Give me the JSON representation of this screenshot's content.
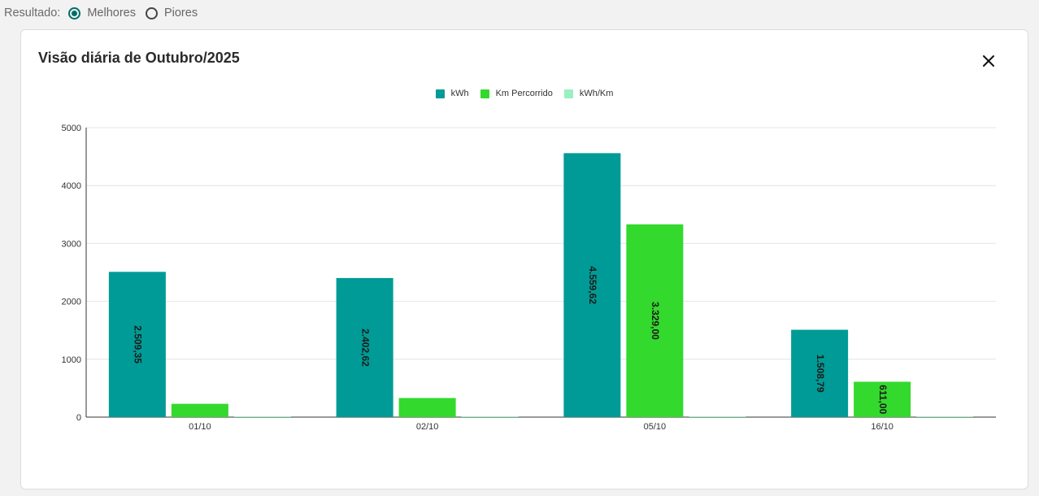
{
  "filter": {
    "label": "Resultado:",
    "options": [
      {
        "label": "Melhores",
        "checked": true
      },
      {
        "label": "Piores",
        "checked": false
      }
    ]
  },
  "card": {
    "title": "Visão diária de Outubro/2025"
  },
  "chart_data": {
    "type": "bar",
    "title": "Visão diária de Outubro/2025",
    "categories": [
      "01/10",
      "02/10",
      "05/10",
      "16/10"
    ],
    "series": [
      {
        "name": "kWh",
        "color": "#009b96",
        "values": [
          2509.35,
          2402.62,
          4559.62,
          1508.79
        ],
        "labels": [
          "2.509,35",
          "2.402,62",
          "4.559,62",
          "1.508,79"
        ]
      },
      {
        "name": "Km Percorrido",
        "color": "#33d92d",
        "values": [
          230,
          330,
          3329.0,
          611.0
        ],
        "labels": [
          "",
          "",
          "3.329,00",
          "611,00"
        ]
      },
      {
        "name": "kWh/Km",
        "color": "#9af0c0",
        "values": [
          10.9,
          7.3,
          1.4,
          2.5
        ],
        "labels": [
          "",
          "",
          "",
          ""
        ]
      }
    ],
    "ylim": [
      0,
      5000
    ],
    "yticks": [
      "0",
      "1000",
      "2000",
      "3000",
      "4000",
      "5000"
    ],
    "legend_position": "top-center",
    "grid": true
  }
}
